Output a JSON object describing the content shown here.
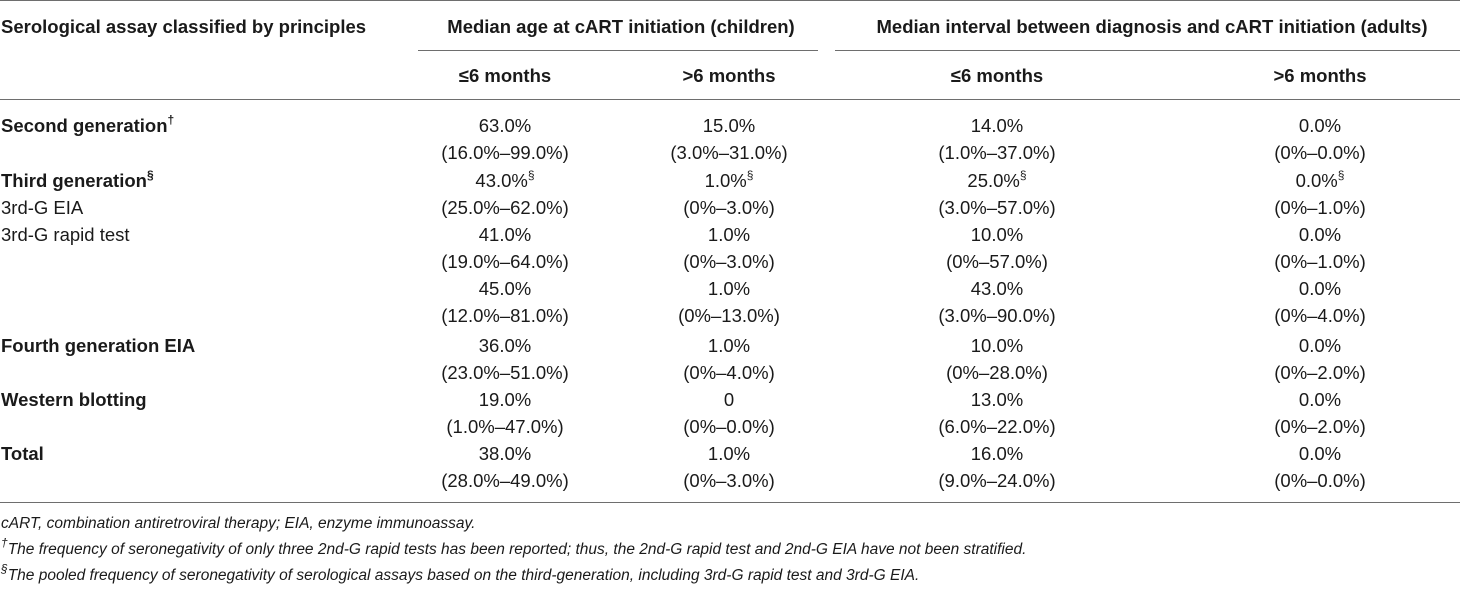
{
  "header": {
    "col0": "Serological assay classified by principles",
    "group_children": "Median age at cART initiation (children)",
    "group_adults": "Median interval between diagnosis and cART initiation (adults)",
    "sub": [
      "≤6 months",
      ">6 months",
      "≤6 months",
      ">6 months"
    ]
  },
  "rows": [
    {
      "label": "Second generation",
      "sup": "†",
      "bold": true,
      "values": [
        "63.0%",
        "15.0%",
        "14.0%",
        "0.0%"
      ],
      "ranges": [
        "(16.0%–99.0%)",
        "(3.0%–31.0%)",
        "(1.0%–37.0%)",
        "(0%–0.0%)"
      ],
      "value_sups": [
        "",
        "",
        "",
        ""
      ]
    },
    {
      "label": "Third generation",
      "sup": "§",
      "bold": true,
      "values": [
        "43.0%",
        "1.0%",
        "25.0%",
        "0.0%"
      ],
      "ranges": [
        "",
        "",
        "",
        ""
      ],
      "value_sups": [
        "§",
        "§",
        "§",
        "§"
      ]
    },
    {
      "label": "3rd-G EIA",
      "sup": "",
      "bold": false,
      "values": [
        "(25.0%–62.0%)",
        "(0%–3.0%)",
        "(3.0%–57.0%)",
        "(0%–1.0%)"
      ],
      "ranges": [
        "",
        "",
        "",
        ""
      ],
      "value_sups": [
        "",
        "",
        "",
        ""
      ]
    },
    {
      "label": "3rd-G rapid test",
      "sup": "",
      "bold": false,
      "values": [
        "41.0%",
        "1.0%",
        "10.0%",
        "0.0%"
      ],
      "ranges": [
        "(19.0%–64.0%)",
        "(0%–3.0%)",
        "(0%–57.0%)",
        "(0%–1.0%)"
      ],
      "value_sups": [
        "",
        "",
        "",
        ""
      ]
    },
    {
      "label": "",
      "sup": "",
      "bold": false,
      "values": [
        "45.0%",
        "1.0%",
        "43.0%",
        "0.0%"
      ],
      "ranges": [
        "(12.0%–81.0%)",
        "(0%–13.0%)",
        "(3.0%–90.0%)",
        "(0%–4.0%)"
      ],
      "value_sups": [
        "",
        "",
        "",
        ""
      ]
    },
    {
      "label": "Fourth generation EIA",
      "sup": "",
      "bold": true,
      "values": [
        "36.0%",
        "1.0%",
        "10.0%",
        "0.0%"
      ],
      "ranges": [
        "(23.0%–51.0%)",
        "(0%–4.0%)",
        "(0%–28.0%)",
        "(0%–2.0%)"
      ],
      "value_sups": [
        "",
        "",
        "",
        ""
      ]
    },
    {
      "label": "Western blotting",
      "sup": "",
      "bold": true,
      "values": [
        "19.0%",
        "0",
        "13.0%",
        "0.0%"
      ],
      "ranges": [
        "(1.0%–47.0%)",
        "(0%–0.0%)",
        "(6.0%–22.0%)",
        "(0%–2.0%)"
      ],
      "value_sups": [
        "",
        "",
        "",
        ""
      ]
    },
    {
      "label": "Total",
      "sup": "",
      "bold": true,
      "values": [
        "38.0%",
        "1.0%",
        "16.0%",
        "0.0%"
      ],
      "ranges": [
        "(28.0%–49.0%)",
        "(0%–3.0%)",
        "(9.0%–24.0%)",
        "(0%–0.0%)"
      ],
      "value_sups": [
        "",
        "",
        "",
        ""
      ]
    }
  ],
  "footnotes": [
    {
      "mark": "",
      "text": "cART, combination antiretroviral therapy; EIA, enzyme immunoassay."
    },
    {
      "mark": "†",
      "text": "The frequency of seronegativity of only three 2nd-G rapid tests has been reported; thus, the 2nd-G rapid test and 2nd-G EIA have not been stratified."
    },
    {
      "mark": "§",
      "text": "The pooled frequency of seronegativity of serological assays based on the third-generation, including 3rd-G rapid test and 3rd-G EIA."
    }
  ]
}
